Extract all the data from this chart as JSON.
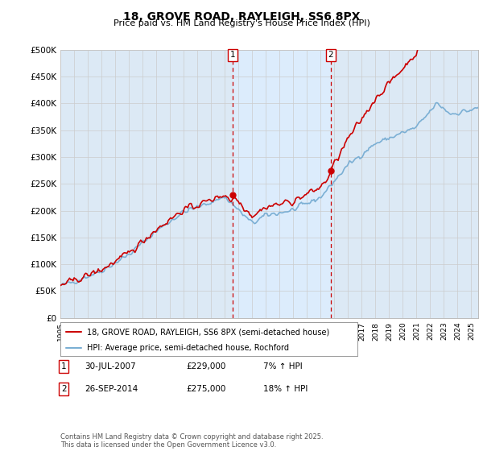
{
  "title": "18, GROVE ROAD, RAYLEIGH, SS6 8PX",
  "subtitle": "Price paid vs. HM Land Registry's House Price Index (HPI)",
  "legend_line1": "18, GROVE ROAD, RAYLEIGH, SS6 8PX (semi-detached house)",
  "legend_line2": "HPI: Average price, semi-detached house, Rochford",
  "sale1_date": "30-JUL-2007",
  "sale1_price": "£229,000",
  "sale1_hpi": "7% ↑ HPI",
  "sale2_date": "26-SEP-2014",
  "sale2_price": "£275,000",
  "sale2_hpi": "18% ↑ HPI",
  "footer": "Contains HM Land Registry data © Crown copyright and database right 2025.\nThis data is licensed under the Open Government Licence v3.0.",
  "ylim": [
    0,
    500000
  ],
  "yticks": [
    0,
    50000,
    100000,
    150000,
    200000,
    250000,
    300000,
    350000,
    400000,
    450000,
    500000
  ],
  "ytick_labels": [
    "£0",
    "£50K",
    "£100K",
    "£150K",
    "£200K",
    "£250K",
    "£300K",
    "£350K",
    "£400K",
    "£450K",
    "£500K"
  ],
  "hpi_color": "#7bafd4",
  "sale_color": "#cc0000",
  "shade_color": "#ddeeff",
  "marker1_x": 2007.58,
  "marker1_y": 229000,
  "marker2_x": 2014.73,
  "marker2_y": 275000,
  "vline1_x": 2007.58,
  "vline2_x": 2014.73,
  "background_color": "#dce9f5",
  "plot_bg": "#ffffff",
  "grid_color": "#cccccc",
  "xlim_start": 1995,
  "xlim_end": 2025.5
}
